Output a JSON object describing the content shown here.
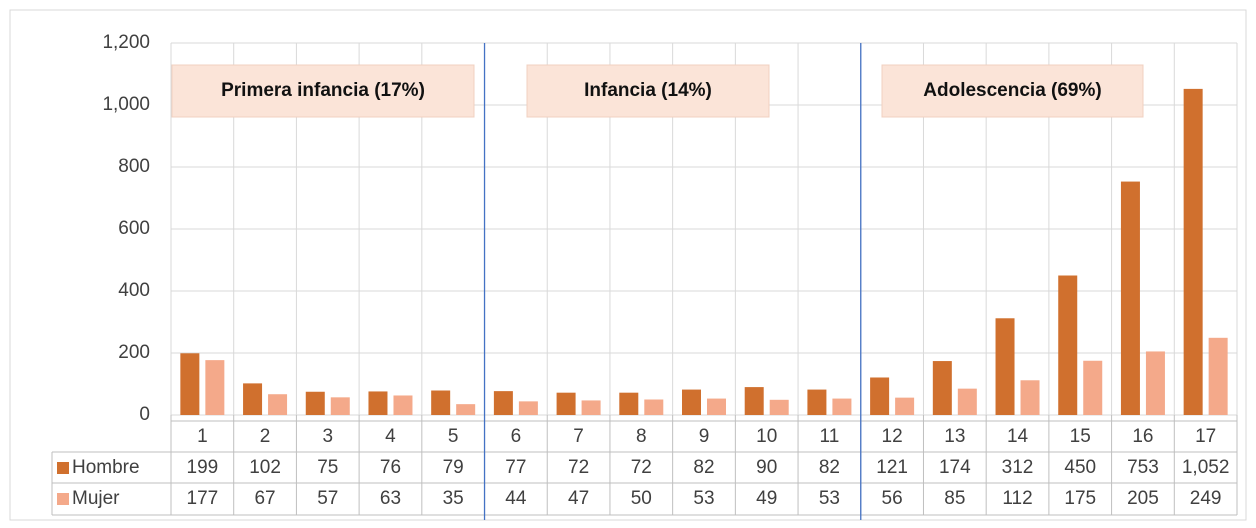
{
  "chart_data": {
    "type": "bar",
    "categories": [
      "1",
      "2",
      "3",
      "4",
      "5",
      "6",
      "7",
      "8",
      "9",
      "10",
      "11",
      "12",
      "13",
      "14",
      "15",
      "16",
      "17"
    ],
    "series": [
      {
        "name": "Hombre",
        "color": "#d0702e",
        "values": [
          199,
          102,
          75,
          76,
          79,
          77,
          72,
          72,
          82,
          90,
          82,
          121,
          174,
          312,
          450,
          753,
          1052
        ],
        "value_labels": [
          "199",
          "102",
          "75",
          "76",
          "79",
          "77",
          "72",
          "72",
          "82",
          "90",
          "82",
          "121",
          "174",
          "312",
          "450",
          "753",
          "1,052"
        ]
      },
      {
        "name": "Mujer",
        "color": "#f4a98a",
        "values": [
          177,
          67,
          57,
          63,
          35,
          44,
          47,
          50,
          53,
          49,
          53,
          56,
          85,
          112,
          175,
          205,
          249
        ]
      }
    ],
    "ylim": [
      0,
      1200
    ],
    "yticks": [
      0,
      200,
      400,
      600,
      800,
      {
        "value": 1000,
        "label": "1,000"
      },
      {
        "value": 1200,
        "label": "1,200"
      }
    ],
    "grid": true,
    "annotations": [
      "Primera infancia (17%)",
      "Infancia (14%)",
      "Adolescencia (69%)"
    ]
  }
}
